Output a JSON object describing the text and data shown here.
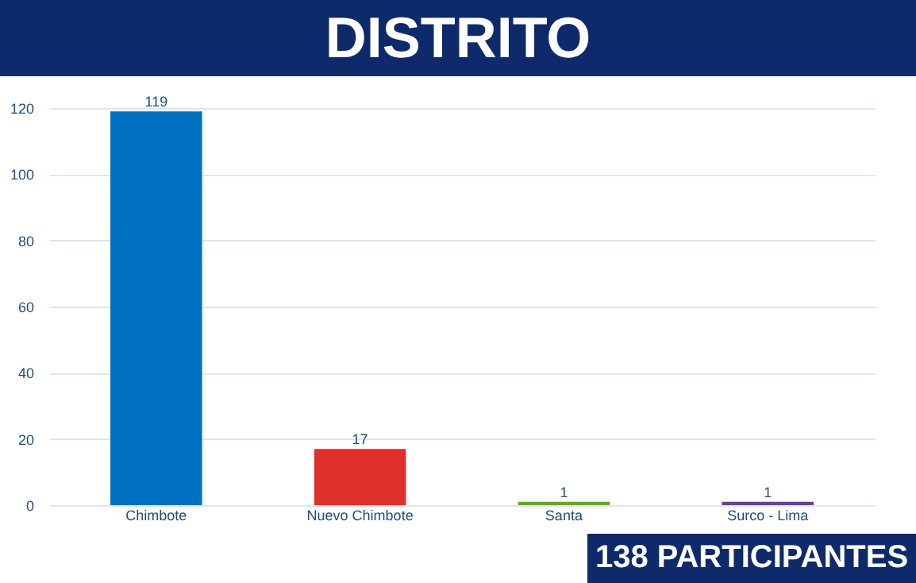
{
  "chart_data": {
    "type": "bar",
    "title": "DISTRITO",
    "categories": [
      "Chimbote",
      "Nuevo Chimbote",
      "Santa",
      "Surco - Lima"
    ],
    "values": [
      119,
      17,
      1,
      1
    ],
    "colors": [
      "#0070c0",
      "#e0302c",
      "#6aa42a",
      "#6a3f8f"
    ],
    "ylim": [
      0,
      120
    ],
    "yticks": [
      0,
      20,
      40,
      60,
      80,
      100,
      120
    ],
    "grid": "y",
    "data_labels": true,
    "annotations": [
      "138 PARTICIPANTES"
    ]
  }
}
